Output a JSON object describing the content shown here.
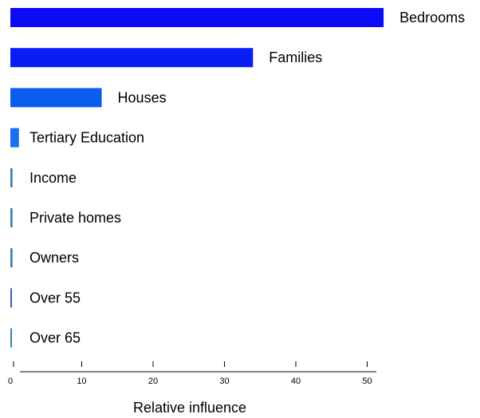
{
  "chart_data": {
    "type": "bar",
    "orientation": "horizontal",
    "title": "",
    "xlabel": "Relative influence",
    "ylabel": "",
    "xlim": [
      0,
      52
    ],
    "xticks": [
      0,
      10,
      20,
      30,
      40,
      50
    ],
    "xtick_labels": [
      "0",
      "10",
      "20",
      "30",
      "40",
      "50"
    ],
    "grid": false,
    "legend": "none",
    "categories": [
      "Bedrooms",
      "Families",
      "Houses",
      "Tertiary Education",
      "Income",
      "Private homes",
      "Owners",
      "Over 55",
      "Over 65"
    ],
    "values": [
      52.3,
      34.0,
      12.8,
      1.2,
      0.3,
      0.3,
      0.3,
      0.2,
      0.2
    ],
    "colors": [
      "#0b0bf5",
      "#0b1df5",
      "#0c5cf0",
      "#1a6ef0",
      "#3a7fb0",
      "#3a7fb0",
      "#3a7fb0",
      "#3a5fc0",
      "#3a7fb0"
    ]
  }
}
